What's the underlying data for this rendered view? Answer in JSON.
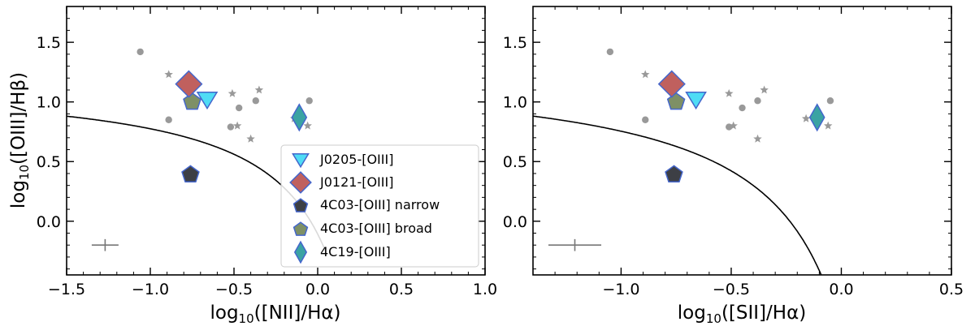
{
  "chart_data": [
    {
      "type": "scatter",
      "xlabel": "log10([NII]/Hα)",
      "ylabel": "log10([OIII]/Hβ)",
      "xlim": [
        -1.5,
        1.0
      ],
      "ylim": [
        -0.45,
        1.8
      ],
      "x_ticks": [
        "−1.5",
        "−1.0",
        "−0.5",
        "0.0",
        "0.5",
        "1.0"
      ],
      "y_ticks": [
        "0.0",
        "0.5",
        "1.0",
        "1.5"
      ],
      "curve": {
        "formula": "0.61/(x-0.47)+1.19",
        "color": "#000000"
      },
      "comparison_circles": [
        [
          -1.06,
          1.42
        ],
        [
          -0.89,
          0.85
        ],
        [
          -0.47,
          0.95
        ],
        [
          -0.52,
          0.79
        ],
        [
          -0.37,
          1.01
        ],
        [
          -0.05,
          1.01
        ]
      ],
      "comparison_stars": [
        [
          -0.89,
          1.23
        ],
        [
          -0.51,
          1.07
        ],
        [
          -0.35,
          1.1
        ],
        [
          -0.48,
          0.8
        ],
        [
          -0.4,
          0.69
        ],
        [
          -0.14,
          0.86
        ],
        [
          -0.06,
          0.8
        ]
      ],
      "error_bar": {
        "x": -1.27,
        "y": -0.2,
        "xerr": 0.08,
        "yerr": 0.05
      },
      "series": [
        {
          "name": "J0205-[OIII]",
          "marker": "triangle-down",
          "color": "#4fdcf5",
          "points": [
            [
              -0.66,
              1.02
            ]
          ]
        },
        {
          "name": "J0121-[OIII]",
          "marker": "diamond",
          "color": "#c0605e",
          "points": [
            [
              -0.77,
              1.15
            ]
          ]
        },
        {
          "name": "4C03-[OIII] narrow",
          "marker": "pentagon",
          "color": "#3d3f45",
          "points": [
            [
              -0.76,
              0.39
            ]
          ]
        },
        {
          "name": "4C03-[OIII] broad",
          "marker": "pentagon",
          "color": "#7e9066",
          "points": [
            [
              -0.75,
              1.0
            ]
          ]
        },
        {
          "name": "4C19-[OIII]",
          "marker": "thin-diamond",
          "color": "#3aa3a3",
          "points": [
            [
              -0.11,
              0.87
            ]
          ]
        }
      ],
      "legend": {
        "position": "lower-right"
      }
    },
    {
      "type": "scatter",
      "xlabel": "log10([SII]/Hα)",
      "ylabel": "",
      "xlim": [
        -1.4,
        0.5
      ],
      "ylim": [
        -0.45,
        1.8
      ],
      "x_ticks": [
        "−1.0",
        "−0.5",
        "0.0",
        "0.5"
      ],
      "y_ticks": [
        "0.0",
        "0.5",
        "1.0",
        "1.5"
      ],
      "curve": {
        "formula": "0.72/(x-0.32)+1.30",
        "color": "#000000"
      },
      "comparison_circles": [
        [
          -1.05,
          1.42
        ],
        [
          -0.89,
          0.85
        ],
        [
          -0.45,
          0.95
        ],
        [
          -0.51,
          0.79
        ],
        [
          -0.38,
          1.01
        ],
        [
          -0.05,
          1.01
        ]
      ],
      "comparison_stars": [
        [
          -0.89,
          1.23
        ],
        [
          -0.51,
          1.07
        ],
        [
          -0.35,
          1.1
        ],
        [
          -0.49,
          0.8
        ],
        [
          -0.38,
          0.69
        ],
        [
          -0.16,
          0.86
        ],
        [
          -0.06,
          0.8
        ]
      ],
      "error_bar": {
        "x": -1.21,
        "y": -0.2,
        "xerr": 0.12,
        "yerr": 0.05
      },
      "series": [
        {
          "name": "J0205-[OIII]",
          "marker": "triangle-down",
          "color": "#4fdcf5",
          "points": [
            [
              -0.66,
              1.02
            ]
          ]
        },
        {
          "name": "J0121-[OIII]",
          "marker": "diamond",
          "color": "#c0605e",
          "points": [
            [
              -0.77,
              1.15
            ]
          ]
        },
        {
          "name": "4C03-[OIII] narrow",
          "marker": "pentagon",
          "color": "#3d3f45",
          "points": [
            [
              -0.76,
              0.39
            ]
          ]
        },
        {
          "name": "4C03-[OIII] broad",
          "marker": "pentagon",
          "color": "#7e9066",
          "points": [
            [
              -0.75,
              1.0
            ]
          ]
        },
        {
          "name": "4C19-[OIII]",
          "marker": "thin-diamond",
          "color": "#3aa3a3",
          "points": [
            [
              -0.11,
              0.87
            ]
          ]
        }
      ]
    }
  ],
  "colors": {
    "marker_edge": "#4466cc",
    "comparison": "#999999",
    "error_bar": "#777777"
  }
}
